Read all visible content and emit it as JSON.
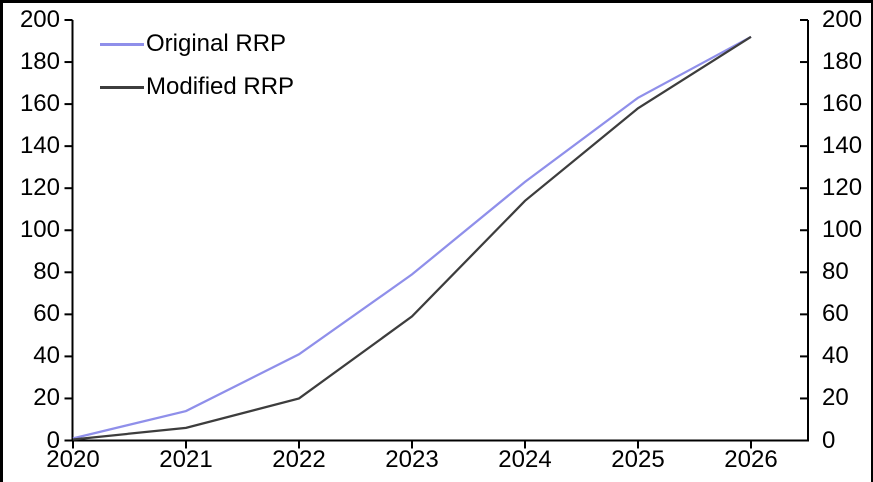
{
  "chart_data": {
    "type": "line",
    "title": "",
    "xlabel": "",
    "ylabel": "",
    "categories": [
      "2020",
      "2021",
      "2022",
      "2023",
      "2024",
      "2025",
      "2026"
    ],
    "series": [
      {
        "name": "Original RRP",
        "color": "#8f8fea",
        "values": [
          1,
          14,
          41,
          79,
          123,
          163,
          192
        ]
      },
      {
        "name": "Modified RRP",
        "color": "#3d3d3d",
        "values": [
          0.5,
          6,
          20,
          59,
          114,
          158,
          192
        ]
      }
    ],
    "y_ticks": [
      0,
      20,
      40,
      60,
      80,
      100,
      120,
      140,
      160,
      180,
      200
    ],
    "ylim": [
      0,
      200
    ],
    "grid": false,
    "legend_position": "top-left",
    "axes": {
      "left": true,
      "right": true,
      "bottom": true,
      "dual_axis_same_scale": true
    },
    "axis_color": "#000000",
    "frame_border_color": "#000000"
  }
}
